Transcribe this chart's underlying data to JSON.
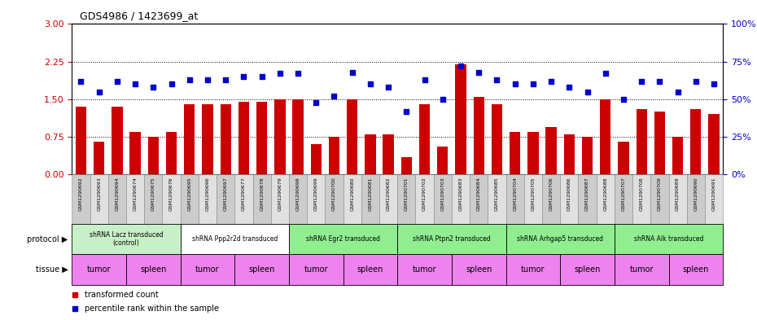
{
  "title": "GDS4986 / 1423699_at",
  "samples": [
    "GSM1290692",
    "GSM1290693",
    "GSM1290694",
    "GSM1290674",
    "GSM1290675",
    "GSM1290676",
    "GSM1290695",
    "GSM1290696",
    "GSM1290697",
    "GSM1290677",
    "GSM1290678",
    "GSM1290679",
    "GSM1290698",
    "GSM1290699",
    "GSM1290700",
    "GSM1290680",
    "GSM1290681",
    "GSM1290682",
    "GSM1290701",
    "GSM1290702",
    "GSM1290703",
    "GSM1290683",
    "GSM1290684",
    "GSM1290685",
    "GSM1290704",
    "GSM1290705",
    "GSM1290706",
    "GSM1290686",
    "GSM1290687",
    "GSM1290688",
    "GSM1290707",
    "GSM1290708",
    "GSM1290709",
    "GSM1290689",
    "GSM1290690",
    "GSM1290691"
  ],
  "bar_values": [
    1.35,
    0.65,
    1.35,
    0.85,
    0.75,
    0.85,
    1.4,
    1.4,
    1.4,
    1.45,
    1.45,
    1.5,
    1.5,
    0.6,
    0.75,
    1.5,
    0.8,
    0.8,
    0.35,
    1.4,
    0.55,
    2.2,
    1.55,
    1.4,
    0.85,
    0.85,
    0.95,
    0.8,
    0.75,
    1.5,
    0.65,
    1.3,
    1.25,
    0.75,
    1.3,
    1.2
  ],
  "dot_values": [
    62,
    55,
    62,
    60,
    58,
    60,
    63,
    63,
    63,
    65,
    65,
    67,
    67,
    48,
    52,
    68,
    60,
    58,
    42,
    63,
    50,
    72,
    68,
    63,
    60,
    60,
    62,
    58,
    55,
    67,
    50,
    62,
    62,
    55,
    62,
    60
  ],
  "protocols": [
    {
      "label": "shRNA Lacz transduced\n(control)",
      "start": 0,
      "end": 6,
      "color": "#c8f0c8"
    },
    {
      "label": "shRNA Ppp2r2d transduced",
      "start": 6,
      "end": 12,
      "color": "#ffffff"
    },
    {
      "label": "shRNA Egr2 transduced",
      "start": 12,
      "end": 18,
      "color": "#90ee90"
    },
    {
      "label": "shRNA Ptpn2 transduced",
      "start": 18,
      "end": 24,
      "color": "#90ee90"
    },
    {
      "label": "shRNA Arhgap5 transduced",
      "start": 24,
      "end": 30,
      "color": "#90ee90"
    },
    {
      "label": "shRNA Alk transduced",
      "start": 30,
      "end": 36,
      "color": "#90ee90"
    }
  ],
  "tissues": [
    {
      "label": "tumor",
      "start": 0,
      "end": 3
    },
    {
      "label": "spleen",
      "start": 3,
      "end": 6
    },
    {
      "label": "tumor",
      "start": 6,
      "end": 9
    },
    {
      "label": "spleen",
      "start": 9,
      "end": 12
    },
    {
      "label": "tumor",
      "start": 12,
      "end": 15
    },
    {
      "label": "spleen",
      "start": 15,
      "end": 18
    },
    {
      "label": "tumor",
      "start": 18,
      "end": 21
    },
    {
      "label": "spleen",
      "start": 21,
      "end": 24
    },
    {
      "label": "tumor",
      "start": 24,
      "end": 27
    },
    {
      "label": "spleen",
      "start": 27,
      "end": 30
    },
    {
      "label": "tumor",
      "start": 30,
      "end": 33
    },
    {
      "label": "spleen",
      "start": 33,
      "end": 36
    }
  ],
  "tissue_color": "#ee82ee",
  "ylim_left": [
    0,
    3
  ],
  "ylim_right": [
    0,
    100
  ],
  "yticks_left": [
    0,
    0.75,
    1.5,
    2.25,
    3
  ],
  "yticks_right": [
    0,
    25,
    50,
    75,
    100
  ],
  "bar_color": "#cc0000",
  "dot_color": "#0000cc",
  "left_tick_color": "#cc0000",
  "right_tick_color": "#0000cc",
  "legend_bar_label": "transformed count",
  "legend_dot_label": "percentile rank within the sample",
  "protocol_row_label": "protocol",
  "tissue_row_label": "tissue"
}
